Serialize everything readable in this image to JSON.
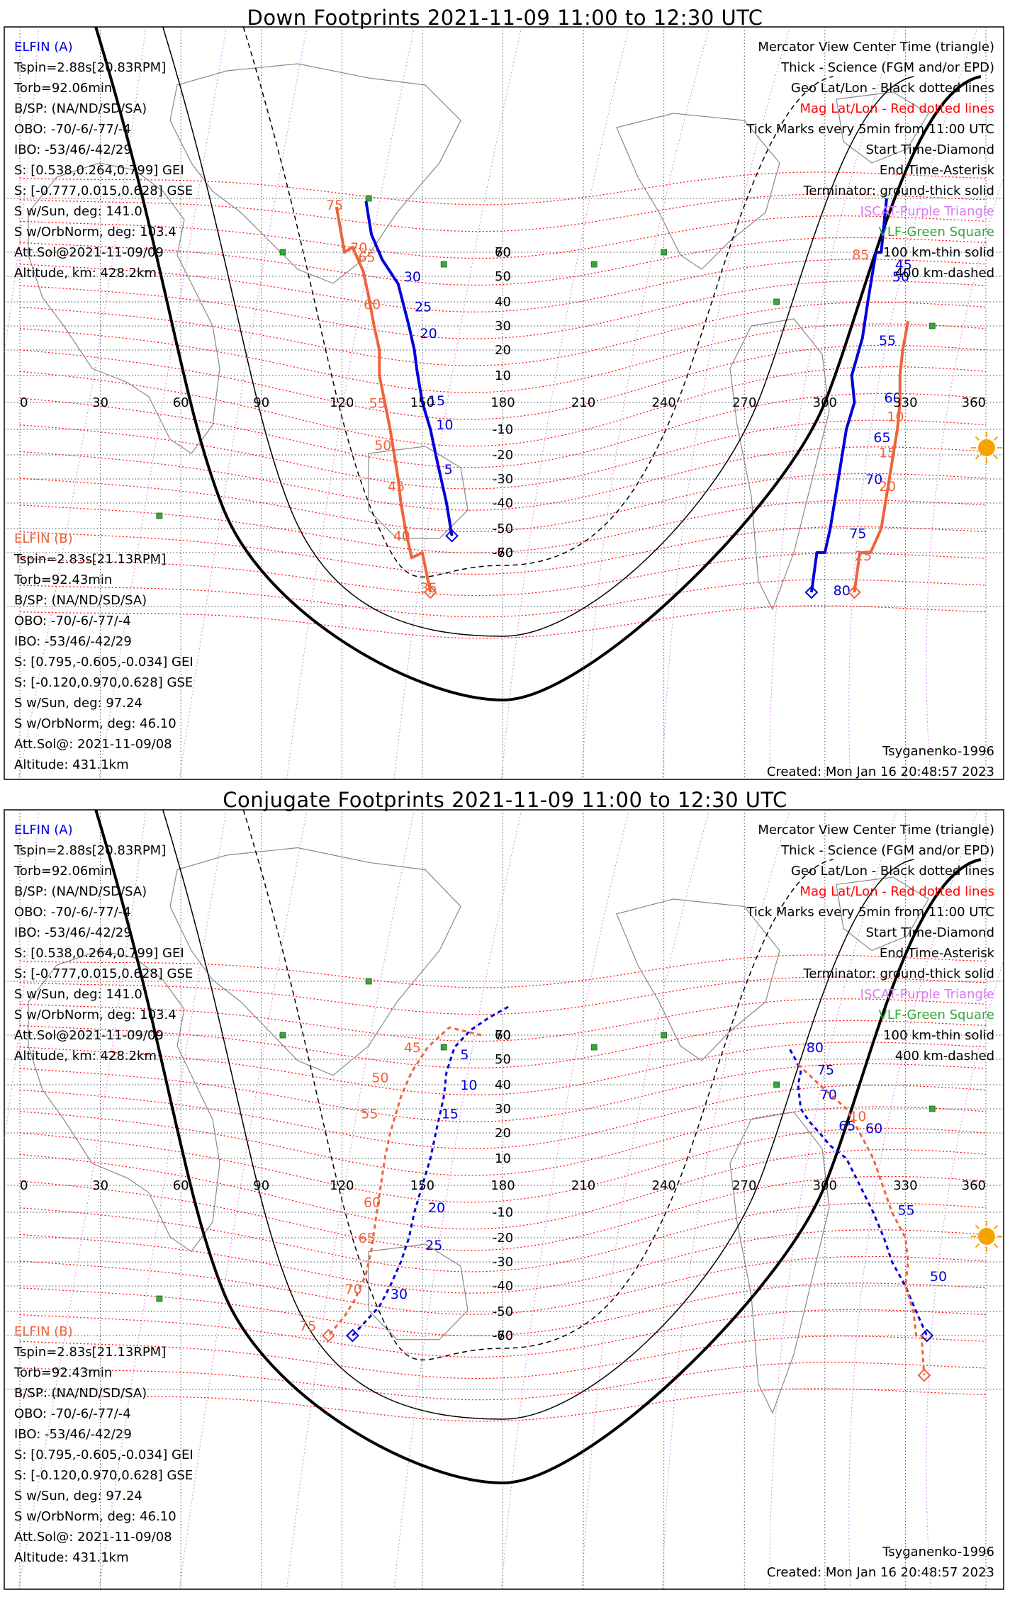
{
  "panels": [
    {
      "id": "down",
      "title": "Down Footprints 2021-11-09 11:00 to 12:30 UTC",
      "elfin_a": {
        "label": "ELFIN (A)",
        "lines": [
          "Tspin=2.88s[20.83RPM]",
          "Torb=92.06min",
          "B/SP: (NA/ND/SD/SA)",
          "OBO: -70/-6/-77/-4",
          "IBO: -53/46/-42/29",
          "S: [0.538,0.264,0.799] GEI",
          "S: [-0.777,0.015,0.628] GSE",
          "S w/Sun, deg: 141.0",
          "S w/OrbNorm, deg: 103.4",
          "Att.Sol@2021-11-09/09",
          "Altitude, km: 428.2km"
        ]
      },
      "elfin_b": {
        "label": "ELFIN (B)",
        "lines": [
          "Tspin=2.83s[21.13RPM]",
          "Torb=92.43min",
          "B/SP: (NA/ND/SD/SA)",
          "OBO: -70/-6/-77/-4",
          "IBO: -53/46/-42/29",
          "S: [0.795,-0.605,-0.034] GEI",
          "S: [-0.120,0.970,0.628] GSE",
          "S w/Sun, deg: 97.24",
          "S w/OrbNorm, deg: 46.10",
          "Att.Sol@: 2021-11-09/08",
          "Altitude: 431.1km"
        ]
      },
      "footer_left": "",
      "footer_right_1": "Tsyganenko-1996",
      "footer_right_2": "Created: Mon Jan 16 20:48:57 2023"
    },
    {
      "id": "conj",
      "title": "Conjugate Footprints 2021-11-09 11:00 to 12:30 UTC",
      "elfin_a": {
        "label": "ELFIN (A)",
        "lines": [
          "Tspin=2.88s[20.83RPM]",
          "Torb=92.06min",
          "B/SP: (NA/ND/SD/SA)",
          "OBO: -70/-6/-77/-4",
          "IBO: -53/46/-42/29",
          "S: [0.538,0.264,0.799] GEI",
          "S: [-0.777,0.015,0.628] GSE",
          "S w/Sun, deg: 141.0",
          "S w/OrbNorm, deg: 103.4",
          "Att.Sol@2021-11-09/09",
          "Altitude, km: 428.2km"
        ]
      },
      "elfin_b": {
        "label": "ELFIN (B)",
        "lines": [
          "Tspin=2.83s[21.13RPM]",
          "Torb=92.43min",
          "B/SP: (NA/ND/SD/SA)",
          "OBO: -70/-6/-77/-4",
          "IBO: -53/46/-42/29",
          "S: [0.795,-0.605,-0.034] GEI",
          "S: [-0.120,0.970,0.628] GSE",
          "S w/Sun, deg: 97.24",
          "S w/OrbNorm, deg: 46.10",
          "Att.Sol@: 2021-11-09/08",
          "Altitude: 431.1km"
        ]
      },
      "footer_right_1": "Tsyganenko-1996",
      "footer_right_2": "Created: Mon Jan 16 20:48:57 2023"
    }
  ],
  "legend": [
    {
      "text": "Mercator View Center Time (triangle)",
      "color": "#000000"
    },
    {
      "text": "Thick - Science (FGM and/or EPD)",
      "color": "#000000"
    },
    {
      "text": "Geo Lat/Lon - Black dotted lines",
      "color": "#000000"
    },
    {
      "text": "Mag Lat/Lon - Red dotted lines",
      "color": "#ff0000"
    },
    {
      "text": "Tick Marks every 5min from 11:00 UTC",
      "color": "#000000"
    },
    {
      "text": "Start Time-Diamond",
      "color": "#000000"
    },
    {
      "text": "End Time-Asterisk",
      "color": "#000000"
    },
    {
      "text": "Terminator: ground-thick solid",
      "color": "#000000"
    },
    {
      "text": "ISCAT-Purple Triangle",
      "color": "#d879f0"
    },
    {
      "text": "VLF-Green Square",
      "color": "#3aa53a"
    },
    {
      "text": "100 km-thin solid",
      "color": "#000000"
    },
    {
      "text": "400 km-dashed",
      "color": "#000000"
    }
  ],
  "map": {
    "lon_ticks": [
      "0",
      "30",
      "60",
      "90",
      "120",
      "150",
      "180",
      "210",
      "240",
      "270",
      "300",
      "330",
      "360"
    ],
    "lat_ticks": [
      "70",
      "60",
      "50",
      "40",
      "30",
      "20",
      "10",
      "-10",
      "-20",
      "-30",
      "-40",
      "-50",
      "-60",
      "-70"
    ],
    "colors": {
      "elfin_a": "#0000dd",
      "elfin_b": "#f0623a",
      "mag_grid": "#ff0000",
      "iscat": "#d879f0",
      "vlf": "#3aa53a",
      "sun": "#f5a300"
    }
  },
  "tracks": {
    "down": {
      "a_pass1": {
        "points": [
          [
            129,
            79
          ],
          [
            131,
            67
          ],
          [
            135,
            57
          ],
          [
            141,
            47
          ],
          [
            145,
            30
          ],
          [
            147,
            20
          ],
          [
            148,
            12
          ],
          [
            150,
            0
          ],
          [
            153,
            -10
          ],
          [
            155,
            -20
          ],
          [
            157,
            -30
          ],
          [
            159,
            -40
          ],
          [
            161,
            -53
          ]
        ],
        "ticks": [
          [
            "30",
            141,
            48
          ],
          [
            "25",
            145,
            36
          ],
          [
            "20",
            147,
            25
          ],
          [
            "15",
            150,
            -1
          ],
          [
            "10",
            153,
            -10
          ],
          [
            "5",
            156,
            -28
          ]
        ]
      },
      "b_pass1": {
        "points": [
          [
            118,
            77
          ],
          [
            121,
            70
          ],
          [
            124,
            62
          ],
          [
            128,
            52
          ],
          [
            130,
            42
          ],
          [
            132,
            30
          ],
          [
            134,
            20
          ],
          [
            134,
            10
          ],
          [
            136,
            0
          ],
          [
            138,
            -10
          ],
          [
            141,
            -30
          ],
          [
            142,
            -40
          ],
          [
            144,
            -52
          ],
          [
            146,
            -62
          ],
          [
            150,
            -70
          ],
          [
            153,
            -75
          ]
        ],
        "ticks": [
          [
            "75",
            112,
            76
          ],
          [
            "70",
            121,
            70
          ],
          [
            "65",
            124,
            56
          ],
          [
            "60",
            126,
            37
          ],
          [
            "55",
            128,
            -2
          ],
          [
            "50",
            130,
            -18
          ],
          [
            "45",
            135,
            -35
          ],
          [
            "40",
            137,
            -55
          ],
          [
            "35",
            147,
            -75
          ]
        ]
      },
      "a_pass2": {
        "points": [
          [
            323,
            80
          ],
          [
            321,
            70
          ],
          [
            319,
            60
          ],
          [
            316,
            40
          ],
          [
            314,
            25
          ],
          [
            310,
            10
          ],
          [
            311,
            0
          ],
          [
            308,
            -10
          ],
          [
            305,
            -30
          ],
          [
            302,
            -50
          ],
          [
            300,
            -60
          ],
          [
            297,
            -70
          ],
          [
            295,
            -75
          ]
        ],
        "ticks": [
          [
            "45",
            324,
            53
          ],
          [
            "50",
            323,
            48
          ],
          [
            "55",
            318,
            22
          ],
          [
            "60",
            320,
            0
          ],
          [
            "65",
            316,
            -15
          ],
          [
            "70",
            313,
            -32
          ],
          [
            "75",
            307,
            -54
          ],
          [
            "80",
            301,
            -76
          ]
        ]
      },
      "b_pass2": {
        "points": [
          [
            331,
            32
          ],
          [
            329,
            20
          ],
          [
            328,
            10
          ],
          [
            328,
            0
          ],
          [
            327,
            -10
          ],
          [
            324,
            -30
          ],
          [
            321,
            -50
          ],
          [
            317,
            -60
          ],
          [
            313,
            -70
          ],
          [
            311,
            -75
          ]
        ],
        "ticks": [
          [
            "10",
            321,
            -7
          ],
          [
            "15",
            318,
            -21
          ],
          [
            "20",
            318,
            -35
          ],
          [
            "25",
            309,
            -63
          ],
          [
            "85",
            308,
            57
          ]
        ]
      }
    },
    "conj": {
      "a_pass1": {
        "points": [
          [
            182,
            71
          ],
          [
            175,
            67
          ],
          [
            168,
            62
          ],
          [
            162,
            55
          ],
          [
            159,
            45
          ],
          [
            158,
            35
          ],
          [
            155,
            20
          ],
          [
            153,
            10
          ],
          [
            150,
            0
          ],
          [
            147,
            -10
          ],
          [
            145,
            -20
          ],
          [
            142,
            -30
          ],
          [
            138,
            -40
          ],
          [
            134,
            -48
          ],
          [
            124,
            -60
          ]
        ],
        "ticks": [
          [
            "5",
            162,
            50
          ],
          [
            "10",
            162,
            38
          ],
          [
            "15",
            155,
            26
          ],
          [
            "20",
            150,
            -10
          ],
          [
            "25",
            149,
            -25
          ],
          [
            "30",
            136,
            -45
          ]
        ]
      },
      "b_pass1": {
        "points": [
          [
            172,
            70
          ],
          [
            160,
            63
          ],
          [
            152,
            55
          ],
          [
            146,
            45
          ],
          [
            142,
            35
          ],
          [
            138,
            20
          ],
          [
            136,
            10
          ],
          [
            133,
            -10
          ],
          [
            131,
            -25
          ],
          [
            129,
            -35
          ],
          [
            125,
            -45
          ],
          [
            121,
            -52
          ],
          [
            115,
            -60
          ]
        ],
        "ticks": [
          [
            "45",
            141,
            53
          ],
          [
            "50",
            129,
            41
          ],
          [
            "55",
            125,
            26
          ],
          [
            "60",
            126,
            -8
          ],
          [
            "65",
            124,
            -22
          ],
          [
            "70",
            119,
            -43
          ],
          [
            "75",
            102,
            -58
          ]
        ]
      },
      "a_pass2": {
        "points": [
          [
            287,
            54
          ],
          [
            289,
            50
          ],
          [
            291,
            45
          ],
          [
            290,
            40
          ],
          [
            291,
            30
          ],
          [
            294,
            25
          ],
          [
            298,
            20
          ],
          [
            302,
            15
          ],
          [
            308,
            10
          ],
          [
            313,
            0
          ],
          [
            318,
            -10
          ],
          [
            322,
            -20
          ],
          [
            325,
            -30
          ],
          [
            330,
            -40
          ],
          [
            334,
            -50
          ],
          [
            338,
            -60
          ]
        ],
        "ticks": [
          [
            "80",
            291,
            53
          ],
          [
            "75",
            295,
            44
          ],
          [
            "70",
            296,
            34
          ],
          [
            "65",
            303,
            21
          ],
          [
            "60",
            313,
            20
          ],
          [
            "55",
            325,
            -11
          ],
          [
            "50",
            337,
            -38
          ]
        ]
      },
      "b_pass2": {
        "points": [
          [
            290,
            48
          ],
          [
            293,
            45
          ],
          [
            298,
            40
          ],
          [
            303,
            35
          ],
          [
            308,
            30
          ],
          [
            313,
            20
          ],
          [
            318,
            10
          ],
          [
            325,
            -10
          ],
          [
            330,
            -20
          ],
          [
            331,
            -30
          ],
          [
            330,
            -40
          ],
          [
            333,
            -50
          ],
          [
            334,
            -60
          ],
          [
            336,
            -70
          ],
          [
            337,
            -75
          ]
        ],
        "ticks": [
          [
            "10",
            307,
            25
          ]
        ]
      }
    }
  }
}
